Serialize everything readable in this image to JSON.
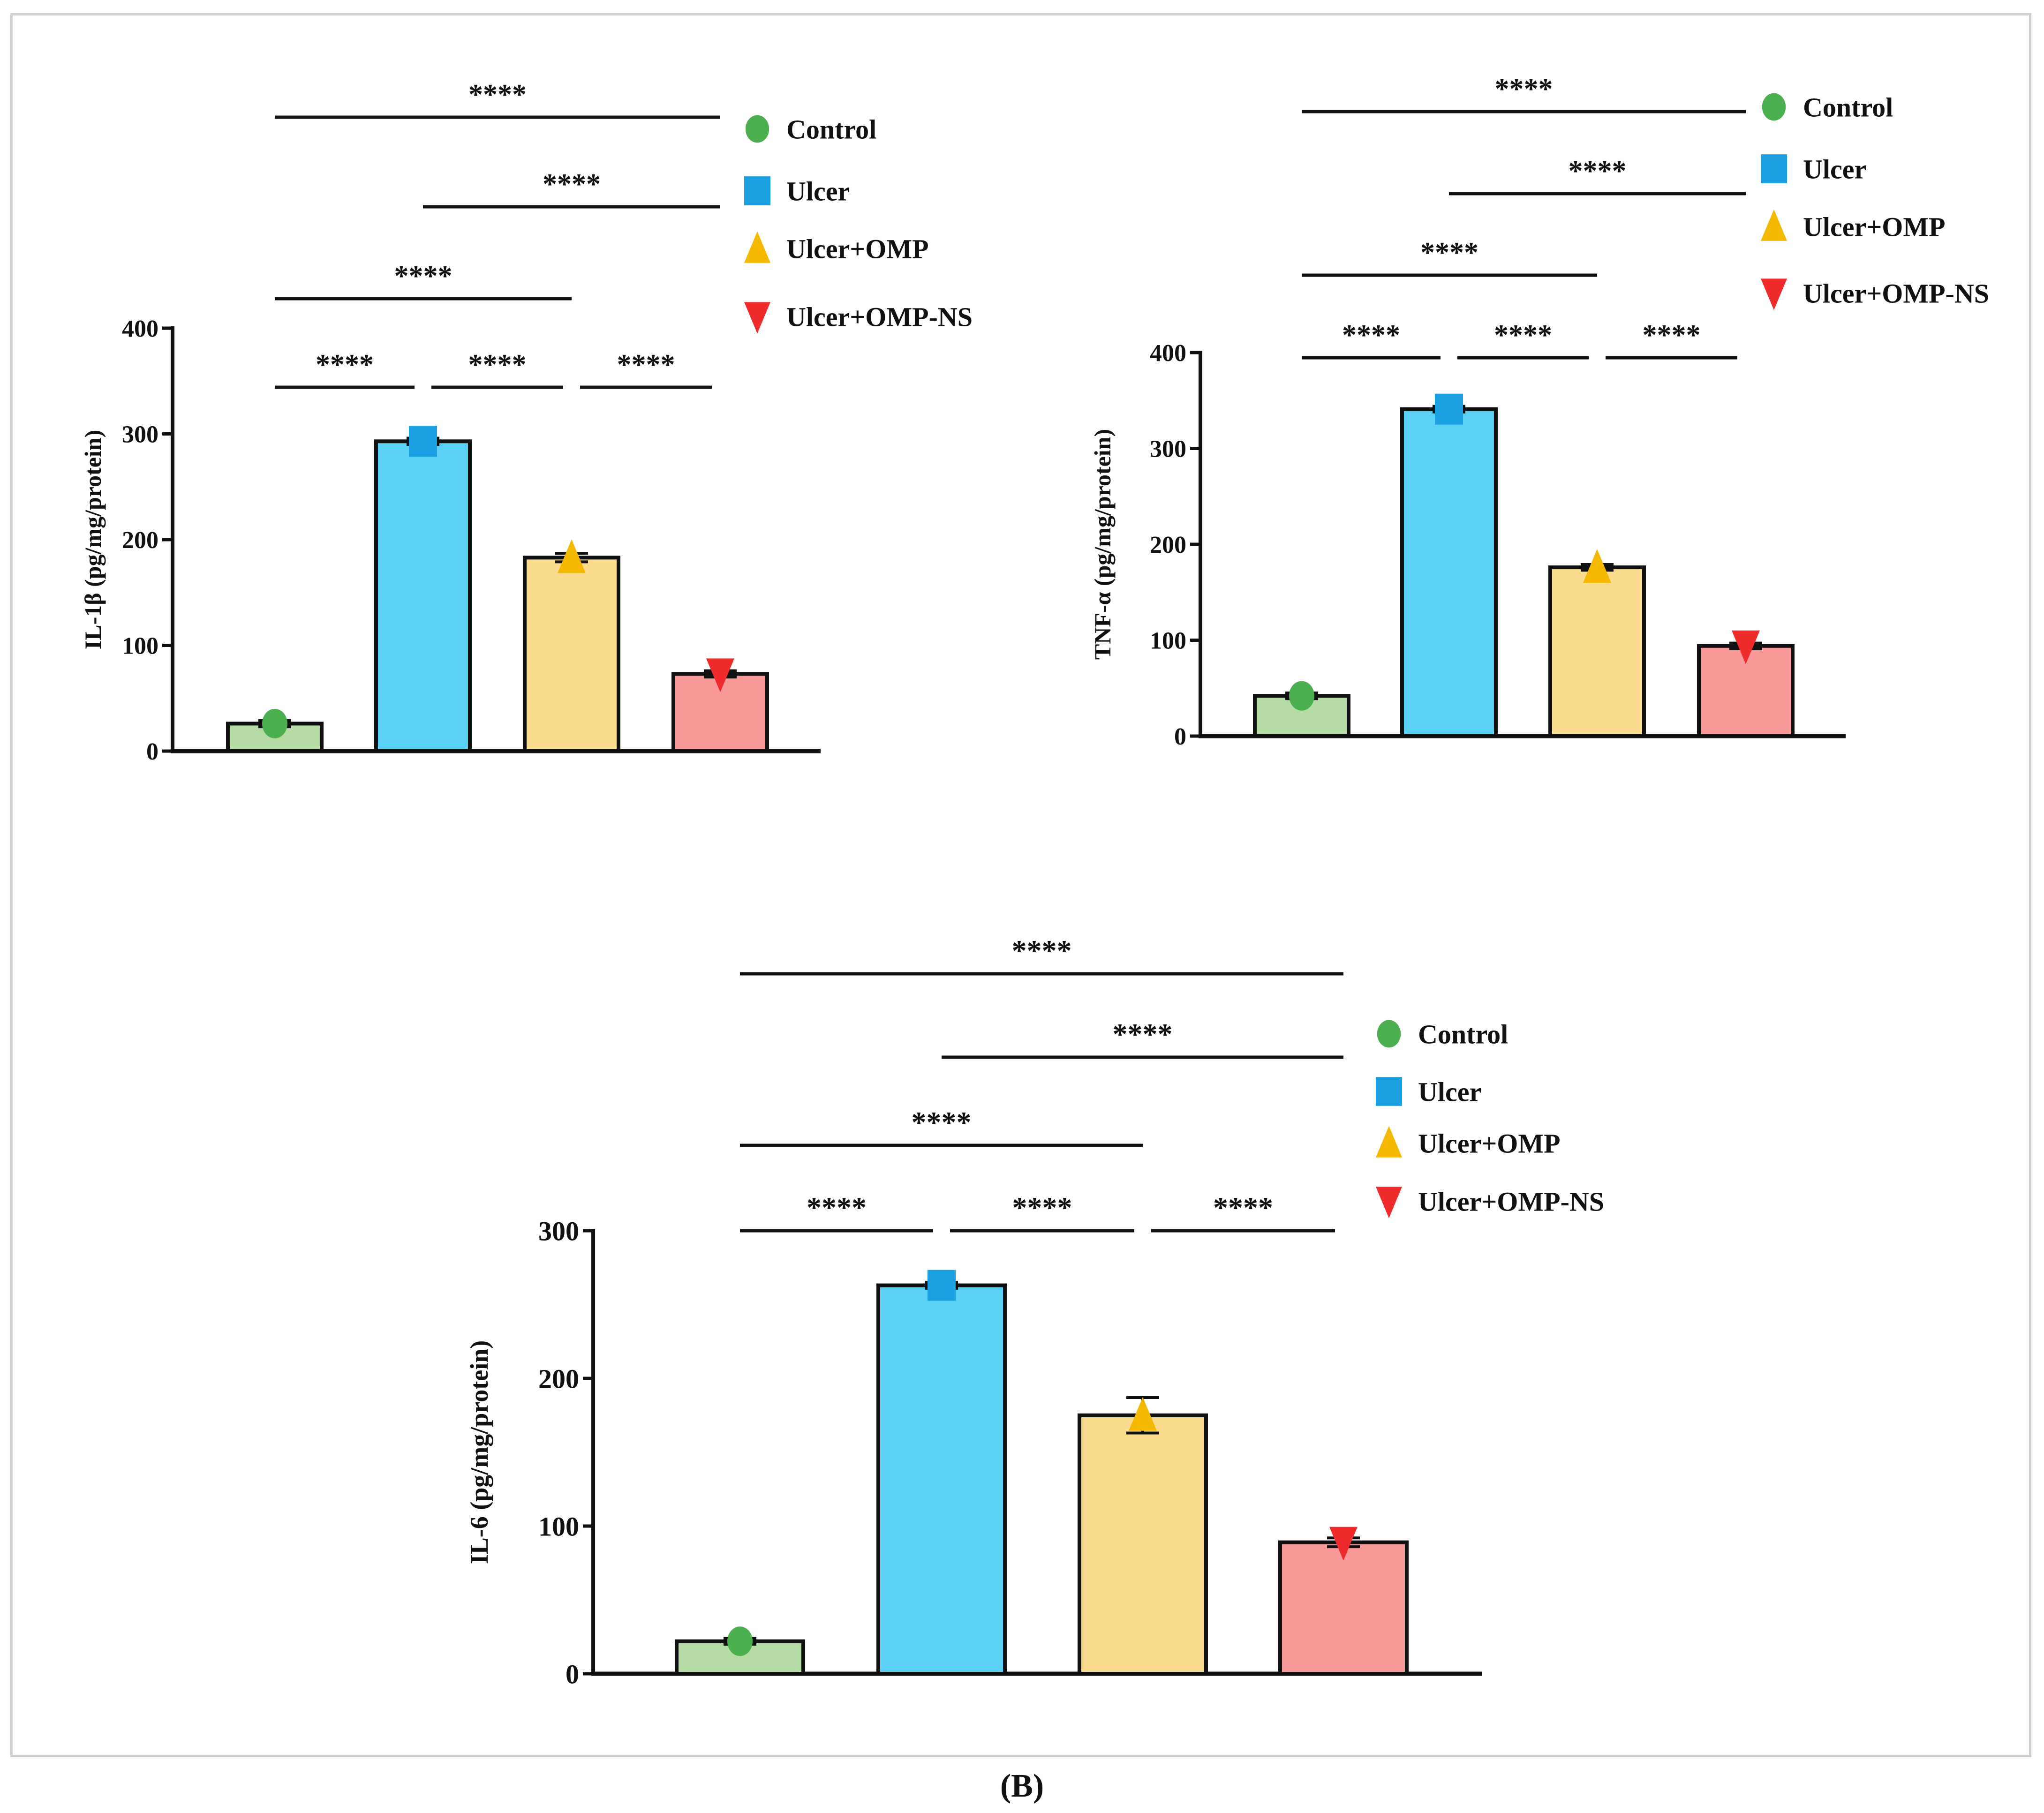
{
  "figure": {
    "caption": "(B)",
    "significance_marker": "****",
    "group_colors": {
      "Control": {
        "fill": "#b5dca5",
        "marker": "#4caf50",
        "shape": "circle"
      },
      "Ulcer": {
        "fill": "#5bd0f5",
        "marker": "#1a9fe0",
        "shape": "square"
      },
      "Ulcer+OMP": {
        "fill": "#fbdc8f",
        "marker": "#f5b800",
        "shape": "triangle-up"
      },
      "Ulcer+OMP-NS": {
        "fill": "#f99a98",
        "marker": "#ef2b2b",
        "shape": "triangle-down"
      }
    }
  },
  "chart_data": [
    {
      "id": "il1b",
      "type": "bar",
      "ylabel": "IL-1β (pg/mg/protein)",
      "ylim": [
        0,
        400
      ],
      "yticks": [
        0,
        100,
        200,
        300,
        400
      ],
      "categories": [
        "Control",
        "Ulcer",
        "Ulcer+OMP",
        "Ulcer+OMP-NS"
      ],
      "values": [
        26,
        293,
        183,
        73
      ],
      "errors": [
        3,
        3,
        4,
        3
      ],
      "legend": [
        "Control",
        "Ulcer",
        "Ulcer+OMP",
        "Ulcer+OMP-NS"
      ],
      "legend_position": "top-right",
      "significance": [
        {
          "from": 0,
          "to": 1,
          "label": "****"
        },
        {
          "from": 1,
          "to": 2,
          "label": "****"
        },
        {
          "from": 2,
          "to": 3,
          "label": "****"
        },
        {
          "from": 0,
          "to": 2,
          "label": "****"
        },
        {
          "from": 1,
          "to": 3,
          "label": "****"
        },
        {
          "from": 0,
          "to": 3,
          "label": "****"
        }
      ]
    },
    {
      "id": "tnfa",
      "type": "bar",
      "ylabel": "TNF-α (pg/mg/protein)",
      "ylim": [
        0,
        400
      ],
      "yticks": [
        0,
        100,
        200,
        300,
        400
      ],
      "categories": [
        "Control",
        "Ulcer",
        "Ulcer+OMP",
        "Ulcer+OMP-NS"
      ],
      "values": [
        42,
        341,
        176,
        94
      ],
      "errors": [
        3,
        3,
        3,
        3
      ],
      "legend": [
        "Control",
        "Ulcer",
        "Ulcer+OMP",
        "Ulcer+OMP-NS"
      ],
      "legend_position": "top-right",
      "significance": [
        {
          "from": 0,
          "to": 1,
          "label": "****"
        },
        {
          "from": 1,
          "to": 2,
          "label": "****"
        },
        {
          "from": 2,
          "to": 3,
          "label": "****"
        },
        {
          "from": 0,
          "to": 2,
          "label": "****"
        },
        {
          "from": 1,
          "to": 3,
          "label": "****"
        },
        {
          "from": 0,
          "to": 3,
          "label": "****"
        }
      ]
    },
    {
      "id": "il6",
      "type": "bar",
      "ylabel": "IL-6 (pg/mg/protein)",
      "ylim": [
        0,
        300
      ],
      "yticks": [
        0,
        100,
        200,
        300
      ],
      "categories": [
        "Control",
        "Ulcer",
        "Ulcer+OMP",
        "Ulcer+OMP-NS"
      ],
      "values": [
        22,
        263,
        175,
        89
      ],
      "errors": [
        2,
        2,
        12,
        3
      ],
      "legend": [
        "Control",
        "Ulcer",
        "Ulcer+OMP",
        "Ulcer+OMP-NS"
      ],
      "legend_position": "right",
      "significance": [
        {
          "from": 0,
          "to": 1,
          "label": "****"
        },
        {
          "from": 1,
          "to": 2,
          "label": "****"
        },
        {
          "from": 2,
          "to": 3,
          "label": "****"
        },
        {
          "from": 0,
          "to": 2,
          "label": "****"
        },
        {
          "from": 1,
          "to": 3,
          "label": "****"
        },
        {
          "from": 0,
          "to": 3,
          "label": "****"
        }
      ]
    }
  ]
}
